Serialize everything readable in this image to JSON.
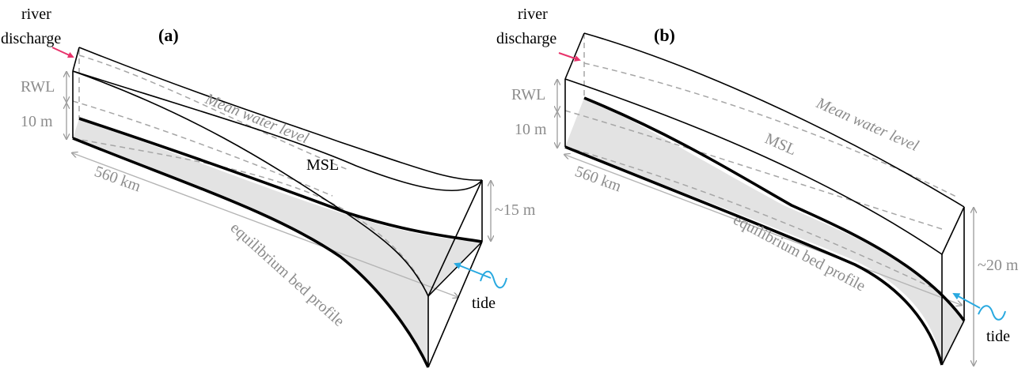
{
  "panel_a": {
    "letter": "(a)",
    "river_label_1": "river",
    "river_label_2": "discharge",
    "rwl_label": "RWL",
    "depth_label": "10 m",
    "length_label": "560 km",
    "mean_water_level_label": "Mean water level",
    "msl_label": "MSL",
    "mouth_depth_label": "~15 m",
    "bed_label": "equilibrium bed  profile",
    "tide_label": "tide"
  },
  "panel_b": {
    "letter": "(b)",
    "river_label_1": "river",
    "river_label_2": "discharge",
    "rwl_label": "RWL",
    "depth_label": "10 m",
    "length_label": "560 km",
    "mean_water_level_label": "Mean water level",
    "msl_label": "MSL",
    "mouth_depth_label": "~20 m",
    "bed_label": "equilibrium bed  profile",
    "tide_label": "tide"
  },
  "colors": {
    "river_arrow": "#e8336b",
    "tide_arrow": "#29a9e0",
    "bed_fill": "#e3e3e3",
    "gray_text": "#8c8c8c"
  }
}
